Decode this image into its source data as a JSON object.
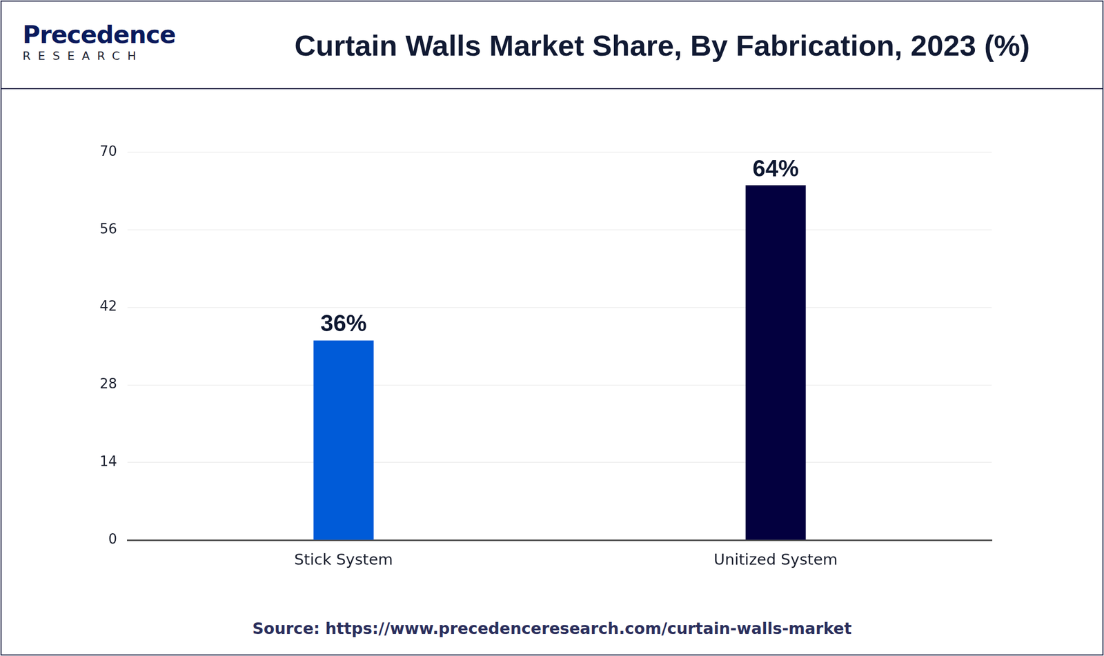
{
  "logo": {
    "name": "Precedence",
    "subname": "RESEARCH"
  },
  "source": "Source: https://www.precedenceresearch.com/curtain-walls-market",
  "chart_data": {
    "type": "bar",
    "title": "Curtain Walls Market Share, By Fabrication, 2023 (%)",
    "categories": [
      "Stick System",
      "Unitized System"
    ],
    "values": [
      36,
      64
    ],
    "value_labels": [
      "36%",
      "64%"
    ],
    "colors": [
      "#005bd8",
      "#03003f"
    ],
    "ylim": [
      0,
      70
    ],
    "yticks": [
      0,
      14,
      28,
      42,
      56,
      70
    ],
    "grid": true,
    "data_labels": true
  }
}
